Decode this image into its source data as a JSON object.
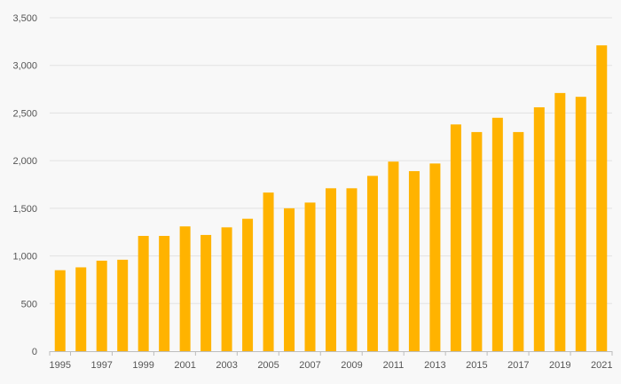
{
  "chart_data": {
    "type": "bar",
    "title": "",
    "xlabel": "",
    "ylabel": "",
    "grid": true,
    "ylim": [
      0,
      3500
    ],
    "y_ticks": [
      "0",
      "500",
      "1,000",
      "1,500",
      "2,000",
      "2,500",
      "3,000",
      "3,500"
    ],
    "y_tick_values": [
      0,
      500,
      1000,
      1500,
      2000,
      2500,
      3000,
      3500
    ],
    "categories": [
      "1995",
      "1996",
      "1997",
      "1998",
      "1999",
      "2000",
      "2001",
      "2002",
      "2003",
      "2004",
      "2005",
      "2006",
      "2007",
      "2008",
      "2009",
      "2010",
      "2011",
      "2012",
      "2013",
      "2014",
      "2015",
      "2016",
      "2017",
      "2018",
      "2019",
      "2020",
      "2021"
    ],
    "x_tick_labels": [
      "1995",
      "1997",
      "1999",
      "2001",
      "2003",
      "2005",
      "2007",
      "2009",
      "2011",
      "2013",
      "2015",
      "2017",
      "2019",
      "2021"
    ],
    "values": [
      850,
      880,
      950,
      960,
      1210,
      1210,
      1310,
      1220,
      1300,
      1390,
      1665,
      1500,
      1560,
      1710,
      1710,
      1840,
      1990,
      1890,
      1970,
      2380,
      2300,
      2450,
      2300,
      2560,
      2710,
      2670,
      3210
    ],
    "bar_color": "#FFB300"
  }
}
